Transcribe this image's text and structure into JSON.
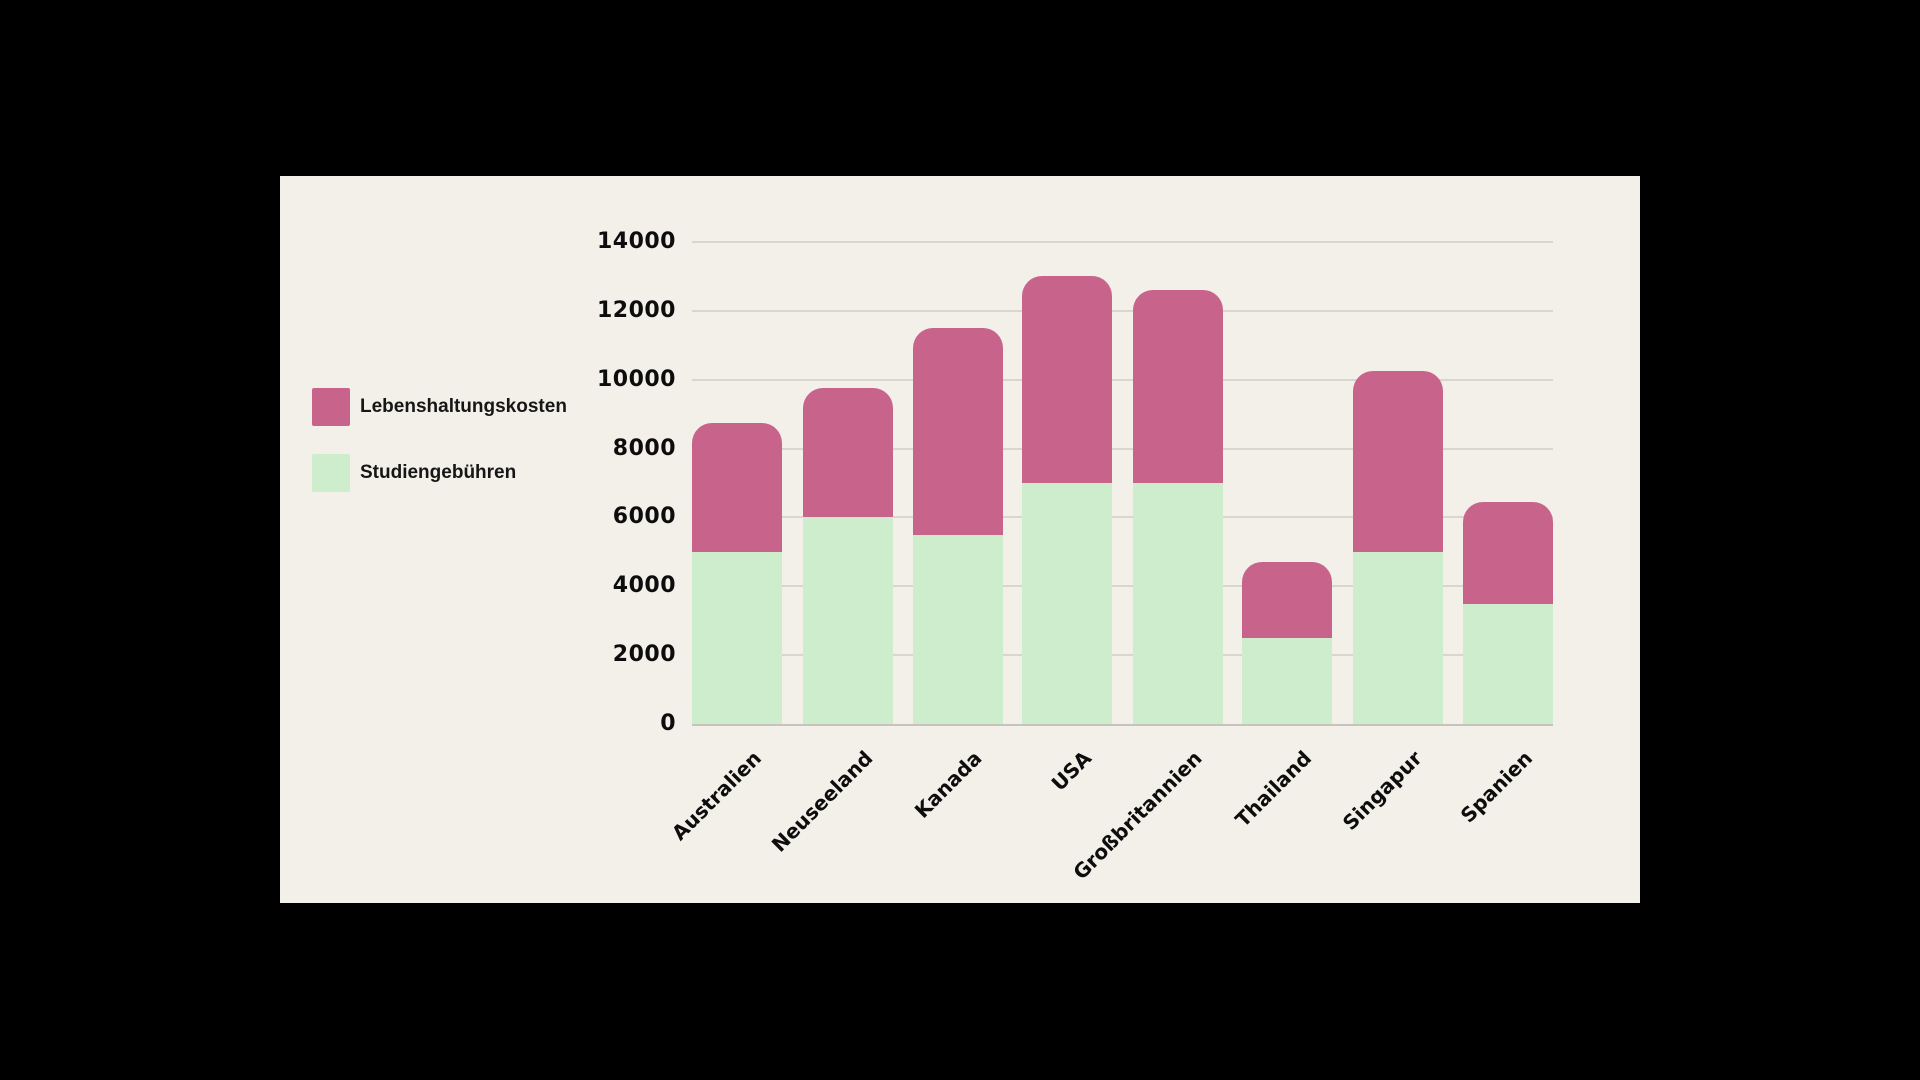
{
  "page": {
    "background": "#000000",
    "card_background": "#f3f0e9"
  },
  "legend": {
    "items": [
      {
        "label": "Lebenshaltungskosten",
        "color": "#c8638b",
        "swatch_icon": "pink-square-swatch"
      },
      {
        "label": "Studiengebühren",
        "color": "#cdedcc",
        "swatch_icon": "green-square-swatch"
      }
    ]
  },
  "chart_data": {
    "type": "bar",
    "stacked": true,
    "title": "",
    "xlabel": "",
    "ylabel": "",
    "categories": [
      "Australien",
      "Neuseeland",
      "Kanada",
      "USA",
      "Großbritannien",
      "Thailand",
      "Singapur",
      "Spanien"
    ],
    "series": [
      {
        "name": "Studiengebühren",
        "color": "#cdedcc",
        "values": [
          5000,
          6000,
          5500,
          7000,
          7000,
          2500,
          5000,
          3500
        ]
      },
      {
        "name": "Lebenshaltungskosten",
        "color": "#c8638b",
        "values": [
          3750,
          3750,
          6000,
          6000,
          5600,
          2200,
          5250,
          2950
        ]
      }
    ],
    "totals": [
      8750,
      9750,
      11500,
      13000,
      12600,
      4700,
      10250,
      6450
    ],
    "ylim": [
      0,
      14000
    ],
    "yticks": [
      0,
      2000,
      4000,
      6000,
      8000,
      10000,
      12000,
      14000
    ],
    "ytick_labels": [
      "0",
      "2000",
      "4000",
      "6000",
      "8000",
      "10000",
      "12000",
      "14000"
    ],
    "grid": true,
    "legend_position": "left"
  }
}
